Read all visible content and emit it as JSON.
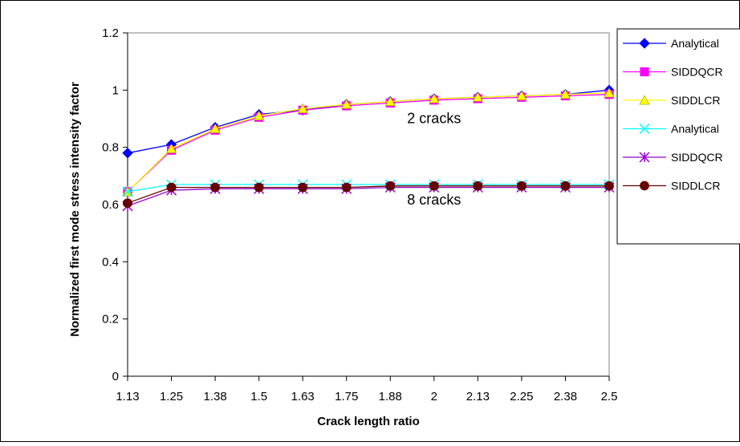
{
  "chart_data": {
    "type": "line",
    "categories": [
      "1.13",
      "1.25",
      "1.38",
      "1.5",
      "1.63",
      "1.75",
      "1.88",
      "2",
      "2.13",
      "2.25",
      "2.38",
      "2.5"
    ],
    "xlabel": "Crack length ratio",
    "ylabel": "Normalized first mode stress intensity factor",
    "ylim": [
      0,
      1.2
    ],
    "yticks": [
      "0",
      "0.2",
      "0.4",
      "0.6",
      "0.8",
      "1",
      "1.2"
    ],
    "grid": false,
    "legend_position": "right",
    "annotations": [
      {
        "text": "2 cracks",
        "x_category": 7,
        "y": 0.885
      },
      {
        "text": "8 cracks",
        "x_category": 7,
        "y": 0.6
      }
    ],
    "series": [
      {
        "name": "Analytical",
        "color": "#0000FF",
        "marker": "diamond",
        "values": [
          0.78,
          0.81,
          0.87,
          0.915,
          0.93,
          0.95,
          0.96,
          0.97,
          0.975,
          0.98,
          0.985,
          1.0
        ]
      },
      {
        "name": "SIDDQCR",
        "color": "#FF00FF",
        "marker": "square",
        "values": [
          0.645,
          0.79,
          0.86,
          0.905,
          0.93,
          0.945,
          0.955,
          0.965,
          0.97,
          0.975,
          0.98,
          0.985
        ]
      },
      {
        "name": "SIDDLCR",
        "color": "#FFFF00",
        "marker": "triangle",
        "values": [
          0.645,
          0.795,
          0.865,
          0.91,
          0.935,
          0.95,
          0.96,
          0.97,
          0.975,
          0.98,
          0.985,
          0.99
        ]
      },
      {
        "name": "Analytical",
        "color": "#00FFFF",
        "marker": "x",
        "values": [
          0.645,
          0.67,
          0.67,
          0.67,
          0.67,
          0.67,
          0.67,
          0.67,
          0.67,
          0.67,
          0.67,
          0.67
        ]
      },
      {
        "name": "SIDDQCR",
        "color": "#9900CC",
        "marker": "star",
        "values": [
          0.595,
          0.65,
          0.655,
          0.655,
          0.655,
          0.655,
          0.66,
          0.66,
          0.66,
          0.66,
          0.66,
          0.66
        ]
      },
      {
        "name": "SIDDLCR",
        "color": "#660000",
        "marker": "circle",
        "values": [
          0.605,
          0.66,
          0.66,
          0.66,
          0.66,
          0.66,
          0.665,
          0.665,
          0.665,
          0.665,
          0.665,
          0.665
        ]
      }
    ]
  }
}
